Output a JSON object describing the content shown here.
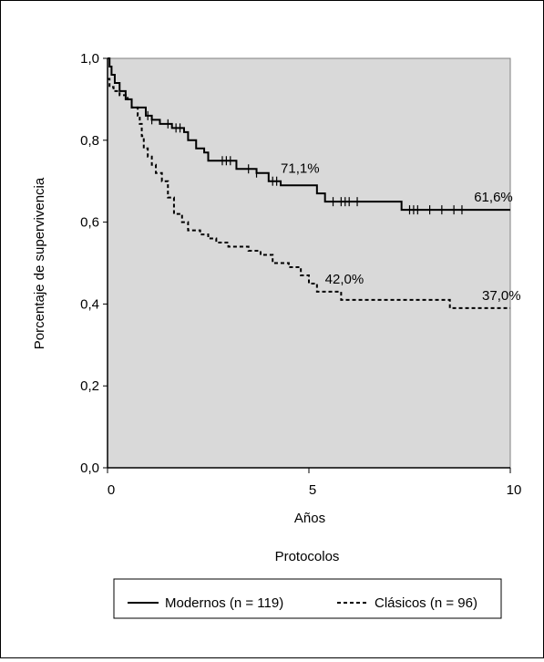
{
  "chart_data": {
    "type": "line",
    "title": "",
    "xlabel": "Años",
    "ylabel": "Porcentaje de supervivencia",
    "xlim": [
      0,
      10
    ],
    "ylim": [
      0,
      1
    ],
    "x_ticks": [
      "0",
      "5",
      "10"
    ],
    "y_ticks": [
      "0,0",
      "0,2",
      "0,4",
      "0,6",
      "0,8",
      "1,0"
    ],
    "grid": false,
    "background": "#d9d9d9",
    "legend_title": "Protocolos",
    "legend_position": "bottom",
    "series": [
      {
        "name": "Modernos (n = 119)",
        "style": "solid",
        "color": "#000000",
        "steps": [
          [
            0,
            1.0
          ],
          [
            0.05,
            0.98
          ],
          [
            0.1,
            0.96
          ],
          [
            0.18,
            0.94
          ],
          [
            0.3,
            0.92
          ],
          [
            0.45,
            0.9
          ],
          [
            0.6,
            0.88
          ],
          [
            0.95,
            0.86
          ],
          [
            1.1,
            0.85
          ],
          [
            1.3,
            0.84
          ],
          [
            1.6,
            0.83
          ],
          [
            1.9,
            0.82
          ],
          [
            2.0,
            0.8
          ],
          [
            2.2,
            0.78
          ],
          [
            2.4,
            0.77
          ],
          [
            2.5,
            0.75
          ],
          [
            3.2,
            0.73
          ],
          [
            3.7,
            0.72
          ],
          [
            4.0,
            0.7
          ],
          [
            4.3,
            0.69
          ],
          [
            5.2,
            0.67
          ],
          [
            5.4,
            0.65
          ],
          [
            7.3,
            0.63
          ],
          [
            10,
            0.63
          ]
        ],
        "censored": [
          1.0,
          1.1,
          1.5,
          1.7,
          1.8,
          2.85,
          2.95,
          3.05,
          3.5,
          3.7,
          4.1,
          4.2,
          5.6,
          5.8,
          5.9,
          6.0,
          6.2,
          7.5,
          7.6,
          7.7,
          8.0,
          8.3,
          8.6,
          8.8
        ]
      },
      {
        "name": "Clásicos (n = 96)",
        "style": "dashed",
        "color": "#000000",
        "steps": [
          [
            0,
            0.95
          ],
          [
            0.05,
            0.93
          ],
          [
            0.15,
            0.92
          ],
          [
            0.3,
            0.91
          ],
          [
            0.5,
            0.9
          ],
          [
            0.6,
            0.88
          ],
          [
            0.75,
            0.86
          ],
          [
            0.8,
            0.84
          ],
          [
            0.85,
            0.81
          ],
          [
            0.9,
            0.78
          ],
          [
            1.0,
            0.76
          ],
          [
            1.1,
            0.74
          ],
          [
            1.2,
            0.72
          ],
          [
            1.35,
            0.7
          ],
          [
            1.5,
            0.66
          ],
          [
            1.65,
            0.62
          ],
          [
            1.85,
            0.6
          ],
          [
            2.0,
            0.58
          ],
          [
            2.3,
            0.57
          ],
          [
            2.5,
            0.56
          ],
          [
            2.7,
            0.55
          ],
          [
            3.0,
            0.54
          ],
          [
            3.5,
            0.53
          ],
          [
            3.8,
            0.52
          ],
          [
            4.1,
            0.5
          ],
          [
            4.5,
            0.49
          ],
          [
            4.8,
            0.47
          ],
          [
            5.0,
            0.45
          ],
          [
            5.2,
            0.43
          ],
          [
            5.8,
            0.41
          ],
          [
            8.5,
            0.39
          ],
          [
            10,
            0.39
          ]
        ],
        "censored": []
      }
    ],
    "annotations": [
      {
        "x": 4.3,
        "y": 0.72,
        "text": "71,1%"
      },
      {
        "x": 9.1,
        "y": 0.65,
        "text": "61,6%"
      },
      {
        "x": 5.4,
        "y": 0.45,
        "text": "42,0%"
      },
      {
        "x": 9.3,
        "y": 0.41,
        "text": "37,0%"
      }
    ]
  }
}
